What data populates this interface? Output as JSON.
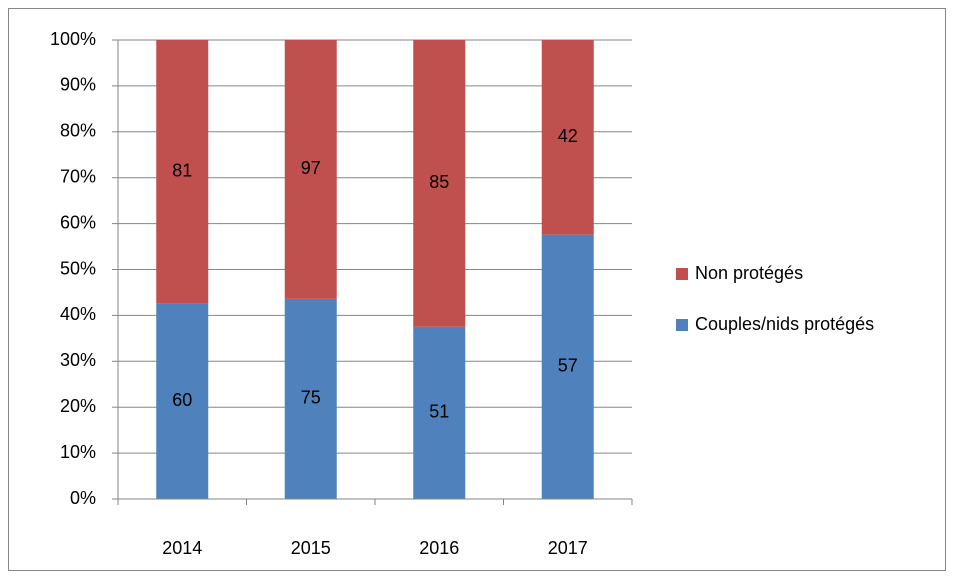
{
  "chart_data": {
    "type": "bar",
    "stacking": "percent",
    "categories": [
      "2014",
      "2015",
      "2016",
      "2017"
    ],
    "series": [
      {
        "name": "Couples/nids protégés",
        "color": "#4f81bd",
        "values": [
          60,
          75,
          51,
          57
        ]
      },
      {
        "name": "Non protégés",
        "color": "#c0504d",
        "values": [
          81,
          97,
          85,
          42
        ]
      }
    ],
    "ylim": [
      0,
      100
    ],
    "yticks": [
      {
        "value": 0,
        "label": "0%"
      },
      {
        "value": 10,
        "label": "10%"
      },
      {
        "value": 20,
        "label": "20%"
      },
      {
        "value": 30,
        "label": "30%"
      },
      {
        "value": 40,
        "label": "40%"
      },
      {
        "value": 50,
        "label": "50%"
      },
      {
        "value": 60,
        "label": "60%"
      },
      {
        "value": 70,
        "label": "70%"
      },
      {
        "value": 80,
        "label": "80%"
      },
      {
        "value": 90,
        "label": "90%"
      },
      {
        "value": 100,
        "label": "100%"
      }
    ],
    "grid": true,
    "legend": "right"
  }
}
